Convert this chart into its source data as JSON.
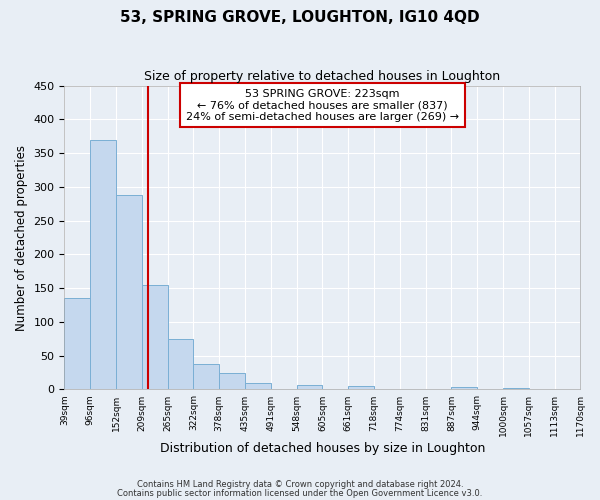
{
  "title": "53, SPRING GROVE, LOUGHTON, IG10 4QD",
  "subtitle": "Size of property relative to detached houses in Loughton",
  "xlabel": "Distribution of detached houses by size in Loughton",
  "ylabel": "Number of detached properties",
  "bar_values": [
    135,
    370,
    288,
    155,
    75,
    38,
    25,
    10,
    0,
    7,
    0,
    5,
    0,
    0,
    0,
    4,
    0,
    2,
    0,
    0
  ],
  "bin_labels": [
    "39sqm",
    "96sqm",
    "152sqm",
    "209sqm",
    "265sqm",
    "322sqm",
    "378sqm",
    "435sqm",
    "491sqm",
    "548sqm",
    "605sqm",
    "661sqm",
    "718sqm",
    "774sqm",
    "831sqm",
    "887sqm",
    "944sqm",
    "1000sqm",
    "1057sqm",
    "1113sqm",
    "1170sqm"
  ],
  "bar_color": "#c5d8ee",
  "bar_edge_color": "#7aafd4",
  "vline_x": 3,
  "vline_color": "#cc0000",
  "annotation_text": "53 SPRING GROVE: 223sqm\n← 76% of detached houses are smaller (837)\n24% of semi-detached houses are larger (269) →",
  "annotation_box_color": "#ffffff",
  "annotation_box_edge_color": "#cc0000",
  "ylim": [
    0,
    450
  ],
  "bin_edges_numeric": [
    0,
    1,
    2,
    3,
    4,
    5,
    6,
    7,
    8,
    9,
    10,
    11,
    12,
    13,
    14,
    15,
    16,
    17,
    18,
    19,
    20
  ],
  "footer_line1": "Contains HM Land Registry data © Crown copyright and database right 2024.",
  "footer_line2": "Contains public sector information licensed under the Open Government Licence v3.0.",
  "background_color": "#e8eef5",
  "plot_bg_color": "#e8eef5",
  "grid_color": "#ffffff",
  "title_fontsize": 11,
  "subtitle_fontsize": 9
}
